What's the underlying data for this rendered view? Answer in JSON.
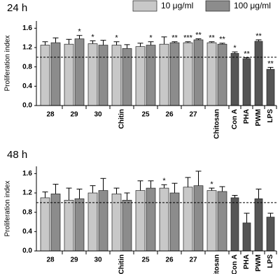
{
  "chart_data": [
    {
      "type": "bar",
      "title": "24 h",
      "y_label": "Proliferation index",
      "categories": [
        "28",
        "29",
        "30",
        "Chitin",
        "25",
        "26",
        "27",
        "Chitosan",
        "Con A",
        "PHA",
        "PWM",
        "LPS"
      ],
      "series": [
        {
          "name": "10 μg/ml",
          "color": "#c8c8c8",
          "values": [
            1.25,
            1.27,
            1.28,
            1.25,
            1.22,
            1.27,
            1.3,
            1.3,
            null,
            null,
            null,
            null
          ],
          "errors": [
            0.07,
            0.1,
            0.06,
            0.07,
            0.07,
            0.15,
            0.02,
            0.02,
            null,
            null,
            null,
            null
          ],
          "annotations": [
            null,
            null,
            "*",
            "*",
            null,
            null,
            "***",
            "**",
            null,
            null,
            null,
            null
          ]
        },
        {
          "name": "100 μg/ml",
          "color": "#8c8c8c",
          "values": [
            1.3,
            1.38,
            1.25,
            1.18,
            1.25,
            1.3,
            1.36,
            1.27,
            1.08,
            0.97,
            1.33,
            0.75
          ],
          "errors": [
            0.1,
            0.07,
            0.1,
            0.08,
            0.07,
            0.02,
            0.02,
            0.02,
            0.03,
            0.02,
            0.03,
            0.04
          ],
          "annotations": [
            null,
            "*",
            null,
            null,
            "*",
            "**",
            "**",
            "**",
            "*",
            "**",
            "**",
            "**"
          ]
        }
      ],
      "control_color": "#555555",
      "reference_line": 1.0,
      "ylim": [
        0,
        1.75
      ],
      "yticks": [
        {
          "value": 0,
          "label": "0.0"
        },
        {
          "value": 0.4,
          "label": "0.4"
        },
        {
          "value": 0.8,
          "label": "0.8"
        },
        {
          "value": 1.2,
          "label": "1.2"
        },
        {
          "value": 1.6,
          "label": "1.6"
        }
      ],
      "legend_position": "top-right"
    },
    {
      "type": "bar",
      "title": "48 h",
      "y_label": "Proliferation index",
      "categories": [
        "28",
        "29",
        "30",
        "Chitin",
        "25",
        "26",
        "27",
        "Chitosan",
        "Con A",
        "PHA",
        "PWM",
        "LPS"
      ],
      "series": [
        {
          "color": "#c8c8c8",
          "values": [
            1.1,
            1.05,
            1.2,
            1.18,
            1.25,
            1.3,
            1.32,
            1.25,
            null,
            null,
            null,
            null
          ],
          "errors": [
            0.12,
            0.25,
            0.15,
            0.12,
            0.2,
            0.07,
            0.2,
            0.05,
            null,
            null,
            null,
            null
          ],
          "annotations": [
            null,
            null,
            null,
            null,
            null,
            "*",
            null,
            "*",
            null,
            null,
            null,
            null
          ]
        },
        {
          "color": "#8c8c8c",
          "values": [
            1.18,
            1.08,
            1.25,
            1.05,
            1.3,
            1.2,
            1.35,
            1.23,
            1.1,
            0.58,
            1.08,
            0.7
          ],
          "errors": [
            0.2,
            0.2,
            0.25,
            0.15,
            0.15,
            0.2,
            0.3,
            0.1,
            0.05,
            0.2,
            0.2,
            0.08
          ],
          "annotations": [
            null,
            null,
            null,
            null,
            null,
            null,
            null,
            null,
            null,
            null,
            null,
            null
          ]
        }
      ],
      "control_color": "#555555",
      "reference_line": 1.0,
      "ylim": [
        0,
        1.75
      ],
      "yticks": [
        {
          "value": 0,
          "label": "0.0"
        },
        {
          "value": 0.4,
          "label": "0.4"
        },
        {
          "value": 0.8,
          "label": "0.8"
        },
        {
          "value": 1.2,
          "label": "1.2"
        },
        {
          "value": 1.6,
          "label": "1.6"
        }
      ]
    }
  ]
}
